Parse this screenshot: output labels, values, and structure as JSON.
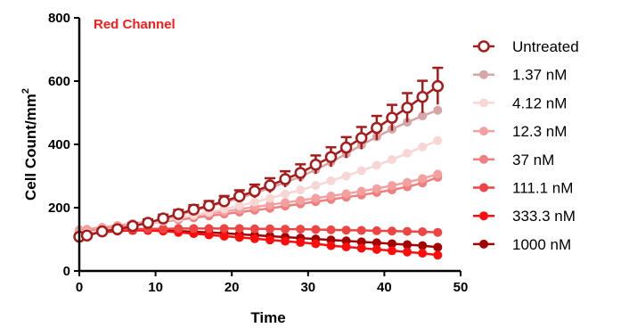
{
  "chart_data": {
    "type": "line",
    "title": "Red Channel",
    "title_color": "#ff1a1a",
    "xlabel": "Time",
    "ylabel": "Cell  Count/mm",
    "ylabel_superscript": "2",
    "xlim": [
      0,
      50
    ],
    "ylim": [
      0,
      800
    ],
    "x_ticks": [
      0,
      10,
      20,
      30,
      40,
      50
    ],
    "y_ticks": [
      0,
      200,
      400,
      600,
      800
    ],
    "grid": false,
    "legend_position": "right",
    "x": [
      0,
      1,
      3,
      5,
      7,
      9,
      11,
      13,
      15,
      17,
      19,
      21,
      23,
      25,
      27,
      29,
      31,
      33,
      35,
      37,
      39,
      41,
      43,
      45,
      47
    ],
    "series": [
      {
        "name": "Untreated",
        "color": "#a61c1c",
        "marker": "open-circle",
        "values": [
          108,
          112,
          125,
          132,
          142,
          152,
          166,
          180,
          194,
          206,
          220,
          236,
          252,
          270,
          290,
          310,
          336,
          360,
          390,
          420,
          452,
          484,
          516,
          550,
          584
        ],
        "error": [
          8,
          8,
          8,
          9,
          10,
          11,
          12,
          13,
          14,
          15,
          17,
          19,
          21,
          23,
          25,
          27,
          29,
          31,
          33,
          35,
          38,
          41,
          46,
          51,
          58
        ]
      },
      {
        "name": "1.37 nM",
        "color": "#d6a5a5",
        "marker": "filled-circle",
        "values": [
          108,
          112,
          124,
          132,
          142,
          152,
          164,
          176,
          190,
          204,
          216,
          230,
          246,
          262,
          280,
          298,
          320,
          344,
          370,
          398,
          424,
          448,
          470,
          490,
          508
        ],
        "error": [
          0,
          0,
          0,
          0,
          0,
          0,
          0,
          0,
          0,
          0,
          0,
          0,
          0,
          0,
          0,
          0,
          0,
          0,
          0,
          0,
          0,
          0,
          0,
          0,
          0
        ]
      },
      {
        "name": "4.12 nM",
        "color": "#f9d6d6",
        "marker": "filled-circle",
        "values": [
          115,
          120,
          128,
          134,
          142,
          150,
          158,
          167,
          176,
          186,
          196,
          206,
          218,
          230,
          243,
          256,
          270,
          285,
          300,
          317,
          334,
          352,
          372,
          392,
          412
        ],
        "error": [
          0,
          0,
          0,
          0,
          0,
          0,
          0,
          0,
          0,
          0,
          0,
          0,
          0,
          0,
          0,
          0,
          0,
          0,
          0,
          0,
          0,
          0,
          0,
          0,
          0
        ]
      },
      {
        "name": "12.3 nM",
        "color": "#f5a0a0",
        "marker": "filled-circle",
        "values": [
          130,
          132,
          138,
          144,
          150,
          156,
          162,
          168,
          175,
          182,
          188,
          195,
          202,
          209,
          216,
          223,
          230,
          237,
          244,
          252,
          260,
          270,
          280,
          292,
          306
        ],
        "error": [
          0,
          0,
          0,
          0,
          0,
          0,
          0,
          0,
          0,
          0,
          0,
          0,
          0,
          0,
          0,
          0,
          0,
          0,
          0,
          0,
          0,
          0,
          0,
          0,
          0
        ]
      },
      {
        "name": "37 nM",
        "color": "#f08080",
        "marker": "filled-circle",
        "values": [
          125,
          127,
          132,
          138,
          144,
          150,
          156,
          162,
          168,
          174,
          180,
          186,
          192,
          198,
          205,
          212,
          219,
          226,
          233,
          240,
          248,
          256,
          266,
          278,
          296
        ],
        "error": [
          0,
          0,
          0,
          0,
          0,
          0,
          0,
          0,
          0,
          0,
          0,
          0,
          0,
          0,
          0,
          0,
          0,
          0,
          0,
          0,
          0,
          0,
          0,
          0,
          0
        ]
      },
      {
        "name": "111.1 nM",
        "color": "#ee4444",
        "marker": "filled-circle",
        "values": [
          125,
          126,
          128,
          130,
          132,
          133,
          133,
          134,
          134,
          134,
          134,
          134,
          133,
          133,
          132,
          132,
          131,
          130,
          129,
          128,
          127,
          126,
          125,
          124,
          122
        ],
        "error": [
          0,
          0,
          0,
          0,
          0,
          0,
          0,
          0,
          0,
          0,
          0,
          0,
          0,
          0,
          0,
          0,
          0,
          0,
          0,
          0,
          0,
          0,
          0,
          0,
          0
        ]
      },
      {
        "name": "333.3 nM",
        "color": "#ff0d0d",
        "marker": "filled-circle",
        "values": [
          110,
          116,
          122,
          126,
          128,
          128,
          126,
          122,
          118,
          114,
          110,
          106,
          102,
          98,
          94,
          90,
          86,
          80,
          76,
          72,
          68,
          64,
          60,
          56,
          50
        ],
        "error": [
          0,
          0,
          0,
          0,
          0,
          0,
          0,
          0,
          0,
          0,
          0,
          0,
          0,
          0,
          0,
          0,
          0,
          0,
          0,
          0,
          0,
          0,
          0,
          0,
          0
        ]
      },
      {
        "name": "1000 nM",
        "color": "#a30000",
        "marker": "filled-circle",
        "values": [
          112,
          118,
          124,
          128,
          130,
          130,
          128,
          126,
          124,
          122,
          119,
          116,
          113,
          110,
          107,
          104,
          101,
          98,
          95,
          92,
          89,
          86,
          83,
          80,
          75
        ],
        "error": [
          0,
          0,
          0,
          0,
          0,
          0,
          0,
          0,
          0,
          0,
          0,
          0,
          0,
          0,
          0,
          0,
          0,
          0,
          0,
          0,
          0,
          0,
          0,
          0,
          0
        ]
      }
    ]
  }
}
